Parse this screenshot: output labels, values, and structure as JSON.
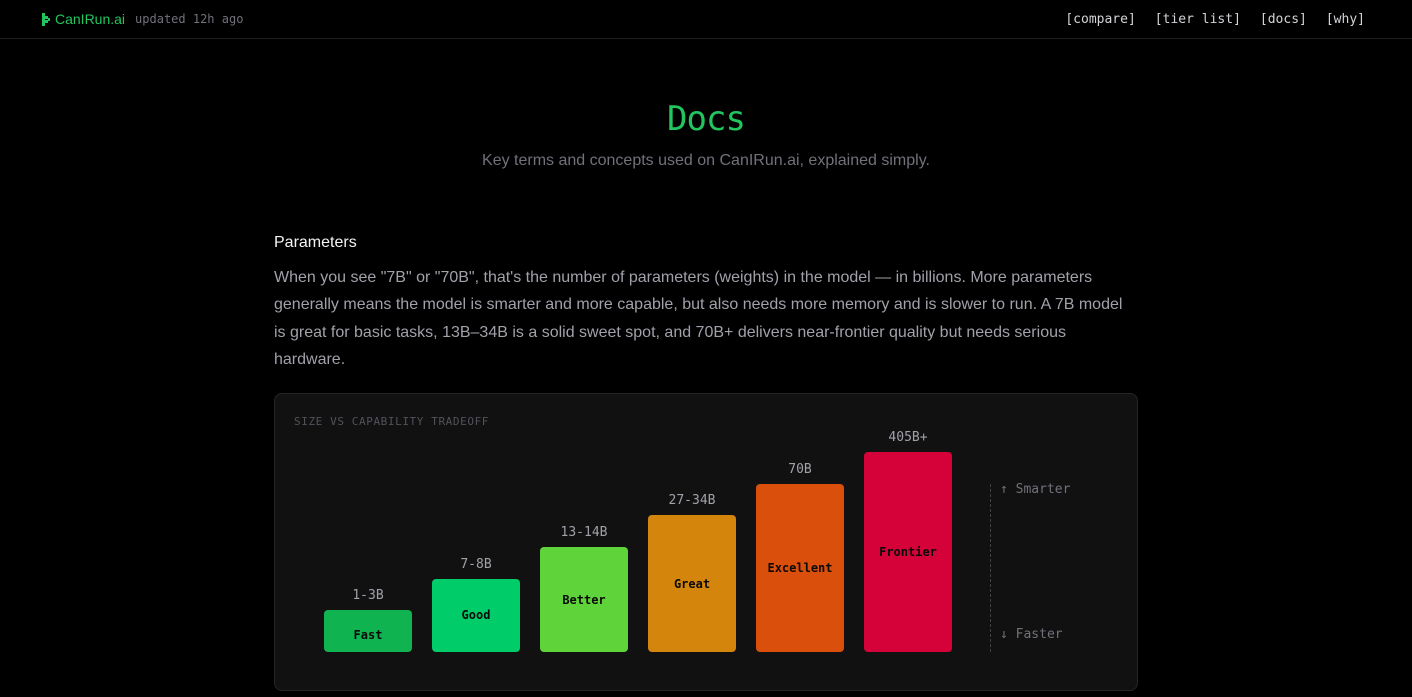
{
  "header": {
    "brand": "CanIRun.ai",
    "updated": "updated 12h ago",
    "nav": [
      "[compare]",
      "[tier list]",
      "[docs]",
      "[why]"
    ]
  },
  "hero": {
    "title": "Docs",
    "subtitle": "Key terms and concepts used on CanIRun.ai, explained simply."
  },
  "section": {
    "title": "Parameters",
    "body": "When you see \"7B\" or \"70B\", that's the number of parameters (weights) in the model — in billions. More parameters generally means the model is smarter and more capable, but also needs more memory and is slower to run. A 7B model is great for basic tasks, 13B–34B is a solid sweet spot, and 70B+ delivers near-frontier quality but needs serious hardware."
  },
  "chart": {
    "label": "SIZE VS CAPABILITY TRADEOFF",
    "scale_top": "↑ Smarter",
    "scale_bottom": "↓ Faster"
  },
  "chart_data": {
    "type": "bar",
    "title": "SIZE VS CAPABILITY TRADEOFF",
    "categories": [
      "1-3B",
      "7-8B",
      "13-14B",
      "27-34B",
      "70B",
      "405B+"
    ],
    "bar_labels": [
      "Fast",
      "Good",
      "Better",
      "Great",
      "Excellent",
      "Frontier"
    ],
    "values": [
      1,
      2,
      3,
      4,
      5,
      6
    ],
    "colors": [
      "#0fb34f",
      "#00cc6a",
      "#5fd43a",
      "#d4860c",
      "#d94f0b",
      "#d40238"
    ],
    "ylim": [
      0,
      6
    ],
    "grid": false
  }
}
